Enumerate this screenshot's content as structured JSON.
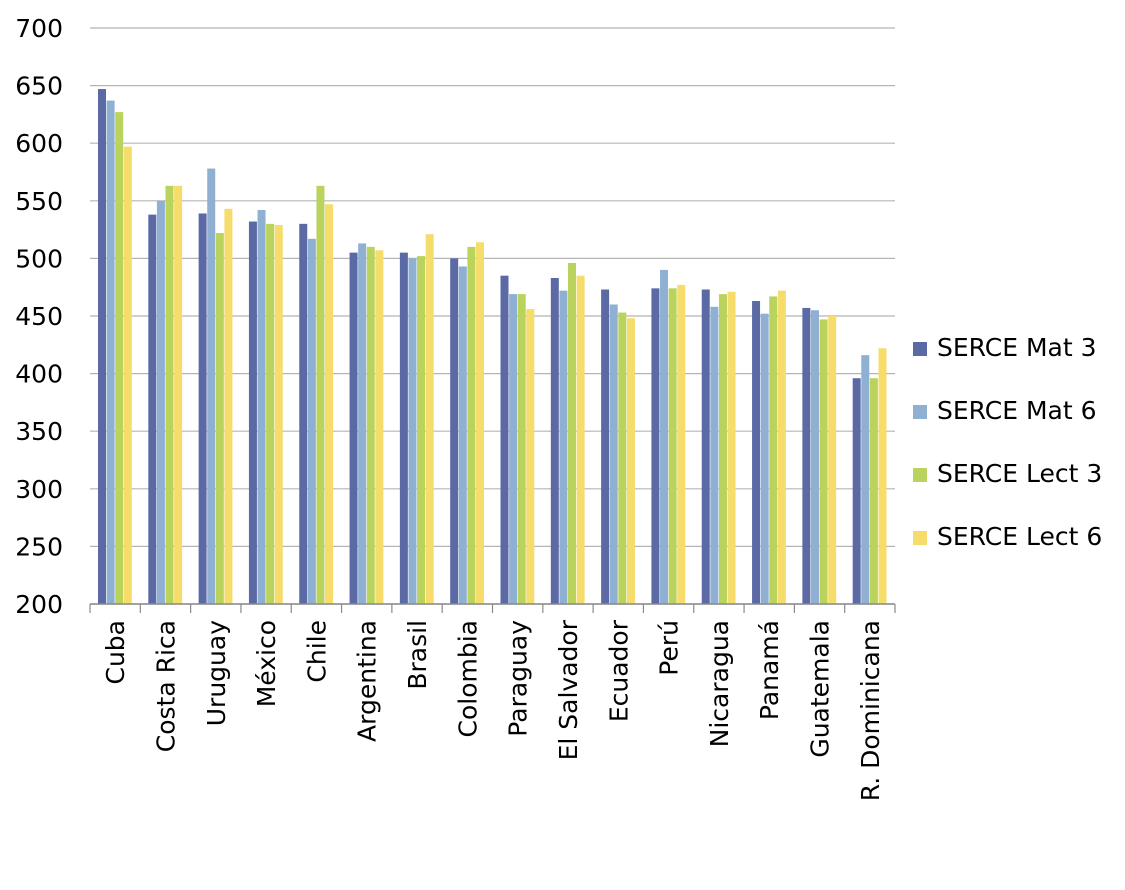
{
  "chart_data": {
    "type": "bar",
    "categories": [
      "Cuba",
      "Costa Rica",
      "Uruguay",
      "México",
      "Chile",
      "Argentina",
      "Brasil",
      "Colombia",
      "Paraguay",
      "El Salvador",
      "Ecuador",
      "Perú",
      "Nicaragua",
      "Panamá",
      "Guatemala",
      "R. Dominicana"
    ],
    "series": [
      {
        "name": "SERCE Mat 3",
        "color": "#5b6aa5",
        "values": [
          647,
          538,
          539,
          532,
          530,
          505,
          505,
          500,
          485,
          483,
          473,
          474,
          473,
          463,
          457,
          396
        ]
      },
      {
        "name": "SERCE Mat 6",
        "color": "#8fb0d3",
        "values": [
          637,
          550,
          578,
          542,
          517,
          513,
          500,
          493,
          469,
          472,
          460,
          490,
          458,
          452,
          455,
          416
        ]
      },
      {
        "name": "SERCE Lect 3",
        "color": "#b9d35c",
        "values": [
          627,
          563,
          522,
          530,
          563,
          510,
          502,
          510,
          469,
          496,
          453,
          474,
          469,
          467,
          447,
          396
        ]
      },
      {
        "name": "SERCE Lect 6",
        "color": "#f5dc6b",
        "values": [
          597,
          563,
          543,
          529,
          547,
          507,
          521,
          514,
          456,
          485,
          448,
          477,
          471,
          472,
          450,
          422
        ]
      }
    ],
    "yticks": [
      200,
      250,
      300,
      350,
      400,
      450,
      500,
      550,
      600,
      650,
      700
    ],
    "ylim": [
      200,
      700
    ],
    "grid": true,
    "legend_position": "right"
  }
}
